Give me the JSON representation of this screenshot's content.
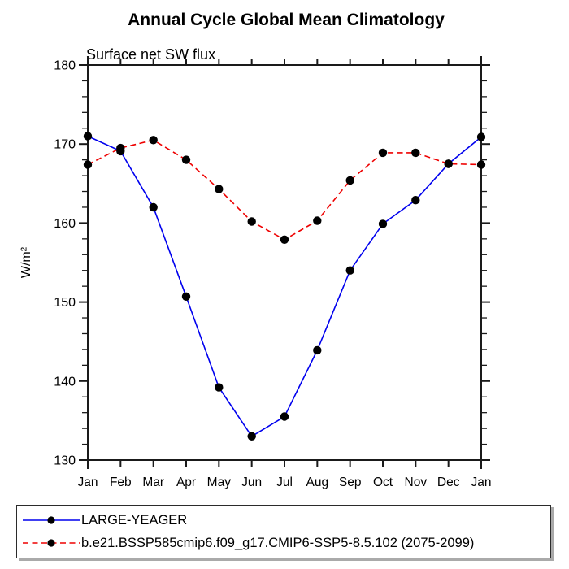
{
  "title": "Annual Cycle Global Mean Climatology",
  "subtitle": "Surface net SW flux",
  "chart_data": {
    "type": "line",
    "x_categories": [
      "Jan",
      "Feb",
      "Mar",
      "Apr",
      "May",
      "Jun",
      "Jul",
      "Aug",
      "Sep",
      "Oct",
      "Nov",
      "Dec",
      "Jan"
    ],
    "ylabel": "W/m²",
    "ylim": [
      130,
      180
    ],
    "ytick_major": [
      130,
      140,
      150,
      160,
      170,
      180
    ],
    "ytick_minor_step": 2,
    "grid": false,
    "legend_position": "bottom",
    "axis_color": "#1a1a1a",
    "marker_color": "#000000",
    "series": [
      {
        "name": "LARGE-YEAGER",
        "color": "#0000ee",
        "style": "solid",
        "marker": "circle",
        "values": [
          171.0,
          169.1,
          162.0,
          150.7,
          139.2,
          133.0,
          135.5,
          143.9,
          154.0,
          159.9,
          162.9,
          167.5,
          170.9
        ]
      },
      {
        "name": "b.e21.BSSP585cmip6.f09_g17.CMIP6-SSP5-8.5.102 (2075-2099)",
        "color": "#ee0000",
        "style": "dashed",
        "marker": "circle",
        "values": [
          167.4,
          169.5,
          170.5,
          168.0,
          164.3,
          160.2,
          157.9,
          160.3,
          165.4,
          168.9,
          168.9,
          167.5,
          167.4
        ]
      }
    ]
  }
}
